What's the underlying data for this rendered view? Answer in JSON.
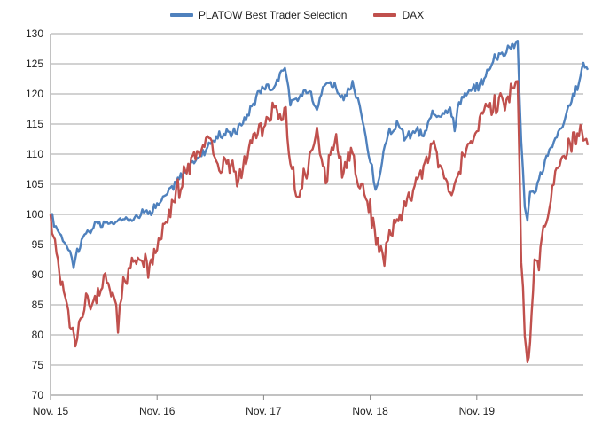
{
  "chart_data": {
    "type": "line",
    "title": "",
    "xlabel": "",
    "ylabel": "",
    "ylim": [
      70,
      130
    ],
    "y_ticks": [
      "70",
      "75",
      "80",
      "85",
      "90",
      "95",
      "100",
      "105",
      "110",
      "115",
      "120",
      "125",
      "130"
    ],
    "x_ticks": [
      "Nov. 15",
      "Nov. 16",
      "Nov. 17",
      "Nov. 18",
      "Nov. 19"
    ],
    "x_range_months": [
      0,
      60.5
    ],
    "grid": "horizontal",
    "legend_position": "top",
    "series": [
      {
        "name": "PLATOW Best Trader Selection",
        "color": "#4f81bd",
        "points": [
          [
            0,
            100
          ],
          [
            0.4,
            98.5
          ],
          [
            1,
            97
          ],
          [
            1.6,
            95.5
          ],
          [
            2.2,
            94
          ],
          [
            2.6,
            91.5
          ],
          [
            3,
            94
          ],
          [
            4,
            97
          ],
          [
            5,
            98
          ],
          [
            6,
            98.5
          ],
          [
            7,
            98.5
          ],
          [
            8,
            99
          ],
          [
            9,
            99.5
          ],
          [
            10,
            100
          ],
          [
            11,
            100.5
          ],
          [
            12,
            101.5
          ],
          [
            13,
            103
          ],
          [
            14,
            105
          ],
          [
            15,
            107
          ],
          [
            16,
            108.5
          ],
          [
            17,
            110
          ],
          [
            18,
            112
          ],
          [
            19,
            113
          ],
          [
            20,
            113.5
          ],
          [
            21,
            114
          ],
          [
            22,
            116
          ],
          [
            23,
            119
          ],
          [
            24,
            121.5
          ],
          [
            25,
            121
          ],
          [
            26,
            123.5
          ],
          [
            26.4,
            125
          ],
          [
            27,
            118
          ],
          [
            28,
            119.5
          ],
          [
            29,
            121
          ],
          [
            30,
            118
          ],
          [
            31,
            122
          ],
          [
            32,
            121.5
          ],
          [
            33,
            119
          ],
          [
            34,
            121.5
          ],
          [
            34.8,
            118
          ],
          [
            35.5,
            113
          ],
          [
            36,
            109
          ],
          [
            36.6,
            104
          ],
          [
            37,
            106
          ],
          [
            37.5,
            110
          ],
          [
            38,
            113
          ],
          [
            39,
            115
          ],
          [
            40,
            112.5
          ],
          [
            41,
            114
          ],
          [
            42,
            113
          ],
          [
            43,
            116.5
          ],
          [
            44,
            117
          ],
          [
            45,
            118
          ],
          [
            45.5,
            114
          ],
          [
            46,
            119
          ],
          [
            47,
            120
          ],
          [
            48,
            121
          ],
          [
            49,
            123
          ],
          [
            50,
            126
          ],
          [
            51,
            127
          ],
          [
            52,
            128
          ],
          [
            52.6,
            129
          ],
          [
            53,
            112
          ],
          [
            53.4,
            102
          ],
          [
            53.7,
            98.5
          ],
          [
            54,
            104
          ],
          [
            54.5,
            103
          ],
          [
            55,
            106
          ],
          [
            56,
            110
          ],
          [
            57,
            113
          ],
          [
            58,
            116
          ],
          [
            59,
            120
          ],
          [
            59.5,
            122
          ],
          [
            60,
            125
          ],
          [
            60.5,
            124
          ]
        ]
      },
      {
        "name": "DAX",
        "color": "#c0504d",
        "points": [
          [
            0,
            100
          ],
          [
            0.5,
            95
          ],
          [
            1,
            91
          ],
          [
            1.5,
            88
          ],
          [
            2,
            84
          ],
          [
            2.5,
            80
          ],
          [
            2.8,
            77.5
          ],
          [
            3.2,
            82
          ],
          [
            4,
            86
          ],
          [
            5,
            85
          ],
          [
            6,
            89
          ],
          [
            7,
            87
          ],
          [
            7.6,
            82
          ],
          [
            8.2,
            88
          ],
          [
            9,
            92
          ],
          [
            10,
            93
          ],
          [
            11,
            91
          ],
          [
            12,
            95
          ],
          [
            13,
            99
          ],
          [
            14,
            103
          ],
          [
            15,
            106
          ],
          [
            16,
            109
          ],
          [
            17,
            110.5
          ],
          [
            18,
            113.5
          ],
          [
            19,
            107
          ],
          [
            20,
            109
          ],
          [
            21,
            105.5
          ],
          [
            22,
            110
          ],
          [
            23,
            113
          ],
          [
            24,
            114.5
          ],
          [
            25,
            117
          ],
          [
            26,
            116
          ],
          [
            26.5,
            118.5
          ],
          [
            27,
            107
          ],
          [
            28,
            104
          ],
          [
            29,
            108
          ],
          [
            30,
            113
          ],
          [
            31,
            106
          ],
          [
            32,
            112
          ],
          [
            33,
            107
          ],
          [
            34,
            110
          ],
          [
            35,
            104
          ],
          [
            36,
            101
          ],
          [
            37,
            94
          ],
          [
            37.6,
            92
          ],
          [
            38,
            96
          ],
          [
            39,
            99
          ],
          [
            40,
            102.5
          ],
          [
            41,
            104
          ],
          [
            42,
            108
          ],
          [
            43,
            112
          ],
          [
            44,
            107.5
          ],
          [
            45,
            103
          ],
          [
            46,
            108
          ],
          [
            47,
            111
          ],
          [
            48,
            114
          ],
          [
            49,
            117
          ],
          [
            50,
            118
          ],
          [
            51,
            119
          ],
          [
            52,
            121
          ],
          [
            52.6,
            122
          ],
          [
            53,
            93
          ],
          [
            53.4,
            80
          ],
          [
            53.7,
            74.5
          ],
          [
            54,
            79
          ],
          [
            54.5,
            92
          ],
          [
            55,
            91
          ],
          [
            55.5,
            97
          ],
          [
            56,
            100
          ],
          [
            56.5,
            104
          ],
          [
            57,
            108
          ],
          [
            58,
            110
          ],
          [
            59,
            113
          ],
          [
            60,
            114
          ],
          [
            60.5,
            111.5
          ]
        ]
      }
    ]
  }
}
